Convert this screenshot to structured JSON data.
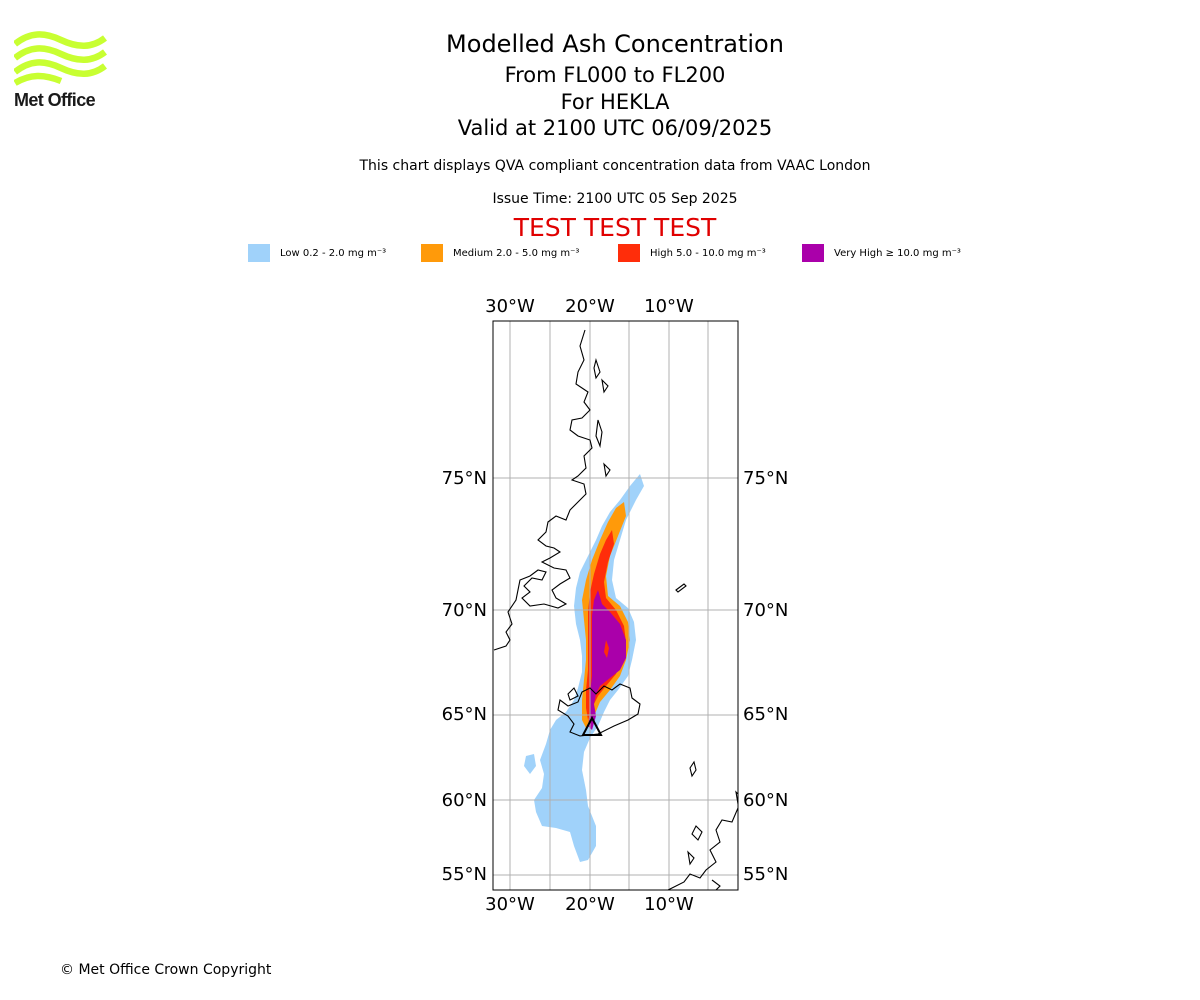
{
  "branding": {
    "logo_text": "Met Office",
    "logo_color": "#c8ff32"
  },
  "header": {
    "title": "Modelled Ash Concentration",
    "levels": "From FL000 to FL200",
    "volcano": "For HEKLA",
    "valid": "Valid at 2100 UTC 06/09/2025",
    "description": "This chart displays QVA compliant concentration data from VAAC London",
    "issue_time": "Issue Time: 2100 UTC 05 Sep 2025",
    "test_banner": "TEST TEST TEST"
  },
  "legend": [
    {
      "label": "Low 0.2 - 2.0 mg m⁻³",
      "color": "#a0d2fa"
    },
    {
      "label": "Medium 2.0 - 5.0 mg m⁻³",
      "color": "#ff9a0a"
    },
    {
      "label": "High 5.0 - 10.0 mg m⁻³",
      "color": "#ff2d0a"
    },
    {
      "label": "Very High ≥ 10.0 mg m⁻³",
      "color": "#aa00aa"
    }
  ],
  "map": {
    "lon_labels": [
      "30°W",
      "20°W",
      "10°W"
    ],
    "lat_labels": [
      "75°N",
      "70°N",
      "65°N",
      "60°N",
      "55°N"
    ],
    "volcano_name": "HEKLA"
  },
  "footer": {
    "copyright": "© Met Office Crown Copyright"
  }
}
